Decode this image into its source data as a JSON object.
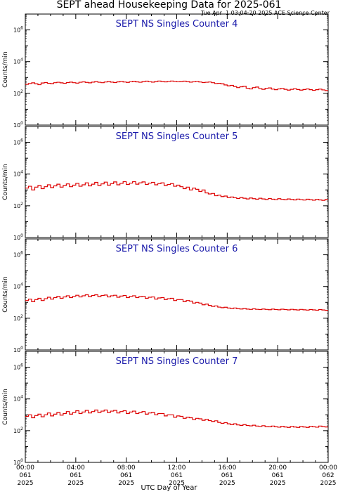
{
  "title": "SEPT ahead Housekeeping Data for 2025-061",
  "timestamp": "Tue Apr  1 03:04:20 2025 ACE Science Center",
  "xlabel": "UTC Day of Year",
  "colors": {
    "trace": "#dd0000",
    "panel_title": "#1a1aaa",
    "axis": "#000000"
  },
  "chart_data": [
    {
      "type": "line",
      "title": "SEPT NS Singles Counter 4",
      "ylabel": "Counts/min",
      "yscale": "log",
      "ylim": [
        1,
        10000000
      ],
      "ytick_labels": [
        "10^0",
        "10^2",
        "10^4",
        "10^6"
      ],
      "xlim": [
        0,
        24
      ],
      "x_step_hours": 0.25,
      "values": [
        370,
        420,
        460,
        400,
        350,
        450,
        480,
        430,
        410,
        470,
        500,
        460,
        430,
        480,
        510,
        470,
        440,
        500,
        530,
        490,
        460,
        510,
        550,
        500,
        470,
        520,
        560,
        510,
        480,
        530,
        570,
        520,
        490,
        540,
        580,
        530,
        500,
        550,
        590,
        540,
        510,
        560,
        600,
        560,
        530,
        570,
        600,
        570,
        540,
        560,
        590,
        550,
        510,
        540,
        570,
        520,
        480,
        500,
        520,
        470,
        420,
        430,
        400,
        340,
        300,
        320,
        270,
        230,
        260,
        280,
        210,
        190,
        230,
        250,
        200,
        180,
        210,
        220,
        185,
        170,
        190,
        205,
        180,
        160,
        180,
        195,
        175,
        160,
        175,
        190,
        170,
        155,
        170,
        185,
        165,
        150
      ]
    },
    {
      "type": "line",
      "title": "SEPT NS Singles Counter 5",
      "ylabel": "Counts/min",
      "yscale": "log",
      "ylim": [
        1,
        10000000
      ],
      "ytick_labels": [
        "10^0",
        "10^2",
        "10^4",
        "10^6"
      ],
      "xlim": [
        0,
        24
      ],
      "x_step_hours": 0.25,
      "values": [
        1300,
        1700,
        1000,
        1500,
        1900,
        1200,
        1600,
        2100,
        1400,
        1800,
        2300,
        1500,
        1900,
        2400,
        1600,
        2000,
        2600,
        1700,
        2100,
        2800,
        1800,
        2300,
        3000,
        1900,
        2400,
        3100,
        2000,
        2500,
        3200,
        2100,
        2600,
        3300,
        2200,
        2700,
        3300,
        2300,
        2800,
        3200,
        2200,
        2700,
        3000,
        2100,
        2500,
        2800,
        1900,
        2200,
        2500,
        1700,
        2000,
        1600,
        1200,
        1500,
        1000,
        1300,
        1100,
        800,
        1000,
        650,
        560,
        600,
        430,
        470,
        380,
        410,
        330,
        360,
        320,
        290,
        330,
        300,
        270,
        310,
        280,
        260,
        300,
        270,
        250,
        290,
        260,
        245,
        280,
        255,
        240,
        270,
        250,
        235,
        265,
        245,
        230,
        260,
        240,
        225,
        255,
        235,
        220,
        250
      ]
    },
    {
      "type": "line",
      "title": "SEPT NS Singles Counter 6",
      "ylabel": "Counts/min",
      "yscale": "log",
      "ylim": [
        1,
        10000000
      ],
      "ytick_labels": [
        "10^0",
        "10^2",
        "10^4",
        "10^6"
      ],
      "xlim": [
        0,
        24
      ],
      "x_step_hours": 0.25,
      "values": [
        1300,
        1600,
        1100,
        1500,
        1800,
        1300,
        1700,
        2100,
        1600,
        2000,
        2400,
        1800,
        2200,
        2600,
        2000,
        2400,
        2800,
        2200,
        2600,
        3000,
        2300,
        2700,
        3000,
        2300,
        2700,
        2900,
        2200,
        2600,
        2800,
        2100,
        2500,
        2700,
        2000,
        2400,
        2600,
        2000,
        2300,
        2400,
        1800,
        2100,
        2200,
        1600,
        1900,
        2000,
        1500,
        1700,
        1800,
        1300,
        1500,
        1500,
        1100,
        1300,
        1200,
        900,
        1000,
        900,
        700,
        780,
        640,
        560,
        600,
        500,
        460,
        490,
        440,
        410,
        440,
        400,
        380,
        410,
        375,
        360,
        390,
        365,
        350,
        380,
        360,
        345,
        375,
        355,
        340,
        370,
        350,
        335,
        365,
        345,
        330,
        360,
        340,
        325,
        355,
        335,
        320,
        350,
        330,
        315
      ]
    },
    {
      "type": "line",
      "title": "SEPT NS Singles Counter 7",
      "ylabel": "Counts/min",
      "yscale": "log",
      "ylim": [
        1,
        10000000
      ],
      "ytick_labels": [
        "10^0",
        "10^2",
        "10^4",
        "10^6"
      ],
      "xlim": [
        0,
        24
      ],
      "x_step_hours": 0.25,
      "values": [
        800,
        1000,
        650,
        900,
        1100,
        750,
        1000,
        1300,
        850,
        1100,
        1400,
        950,
        1200,
        1600,
        1100,
        1400,
        1800,
        1200,
        1500,
        1900,
        1300,
        1600,
        2000,
        1400,
        1700,
        2000,
        1400,
        1700,
        1900,
        1300,
        1600,
        1800,
        1200,
        1500,
        1700,
        1200,
        1400,
        1600,
        1100,
        1300,
        1400,
        1000,
        1200,
        1200,
        850,
        1000,
        1000,
        700,
        850,
        800,
        600,
        700,
        650,
        500,
        600,
        560,
        450,
        520,
        430,
        380,
        420,
        330,
        290,
        320,
        270,
        240,
        270,
        230,
        215,
        240,
        210,
        200,
        220,
        195,
        185,
        205,
        180,
        175,
        195,
        175,
        165,
        190,
        170,
        160,
        185,
        170,
        160,
        185,
        170,
        160,
        190,
        175,
        165,
        195,
        180,
        170
      ]
    }
  ],
  "x_ticks": [
    {
      "time": "00:00",
      "day": "061",
      "year": "2025"
    },
    {
      "time": "04:00",
      "day": "061",
      "year": "2025"
    },
    {
      "time": "08:00",
      "day": "061",
      "year": "2025"
    },
    {
      "time": "12:00",
      "day": "061",
      "year": "2025"
    },
    {
      "time": "16:00",
      "day": "061",
      "year": "2025"
    },
    {
      "time": "20:00",
      "day": "061",
      "year": "2025"
    },
    {
      "time": "00:00",
      "day": "062",
      "year": "2025"
    }
  ]
}
